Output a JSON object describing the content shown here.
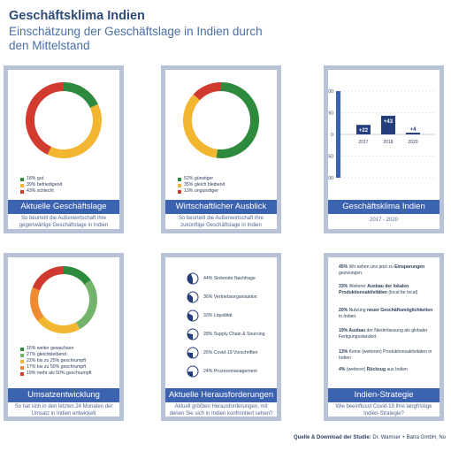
{
  "header": {
    "title": "Geschäftsklima Indien",
    "subtitle": "Einschätzung der Geschäftslage in Indien durch den Mittelstand"
  },
  "cards": {
    "lage": {
      "heading": "Aktuelle Geschäftslage",
      "description": "So beurteilt die Außenwirtschaft ihre gegenwärtige Geschäftslage in Indien",
      "legend": [
        "18% gut",
        "39% befriedigend",
        "43% schlecht"
      ]
    },
    "ausblick": {
      "heading": "Wirtschaftlicher Ausblick",
      "description": "So beurteilt die Außenwirtschaft ihre zukünftige Geschäftslage in Indien",
      "legend": [
        "52% günstiger",
        "35% gleich bleibend",
        "13% ungünstiger"
      ]
    },
    "klima": {
      "heading": "Geschäftsklima Indien",
      "description": "2017 - 2020"
    },
    "umsatz": {
      "heading": "Umsatzentwicklung",
      "description": "So hat sich in den letzten 24 Monaten der Umsatz in Indien entwickelt",
      "legend": [
        "15% weiter gewachsen",
        "27% gleichbleibend",
        "22% bis zu 25% geschrumpft",
        "17% bis zu 50% geschrumpft",
        "19% mehr als 50% geschrumpft"
      ]
    },
    "herausforderungen": {
      "heading": "Aktuelle Herausforderungen",
      "description": "Aktuell größten Herausforderungen, mit denen Sie sich in Indien konfrontiert sehen?",
      "items": [
        {
          "pct": "44%",
          "label": "Sinkende Nachfrage"
        },
        {
          "pct": "36%",
          "label": "Vertriebsorganisation"
        },
        {
          "pct": "33%",
          "label": "Liquidität"
        },
        {
          "pct": "28%",
          "label": "Supply Chain & Sourcing"
        },
        {
          "pct": "26%",
          "label": "Covid-19 Vorschriften"
        },
        {
          "pct": "24%",
          "label": "Prozessmanagement"
        }
      ]
    },
    "strategie": {
      "heading": "Indien-Strategie",
      "description": "Wie beeinflusst Covid-19 Ihre langfristige Indien-Strategie?",
      "items": [
        {
          "pct": "45%",
          "pre": "Wir sehen uns jetzt zu",
          "bold": "Einsparungen",
          "post": "gezwungen."
        },
        {
          "pct": "33%",
          "pre": "Weiterer",
          "bold": "Ausbau der lokalen Produktionsaktivitäten",
          "post": "(local for local)"
        },
        {
          "pct": "20%",
          "pre": "Nutzung",
          "bold": "neuer Geschäftsmöglichkeiten",
          "post": "in Indien."
        },
        {
          "pct": "19%",
          "pre": "",
          "bold": "Ausbau",
          "post": "der Niederlassung als globaler Fertigungsstandort."
        },
        {
          "pct": "13%",
          "pre": "Keine (weiteren) Produktionsaktivitäten in Indien",
          "bold": "",
          "post": ""
        },
        {
          "pct": "4%",
          "pre": "(weiterer)",
          "bold": "Rückzug",
          "post": "aus Indien"
        }
      ]
    }
  },
  "footer": {
    "label": "Quelle & Download der Studie:",
    "text": "Dr. Wamser + Batra GmbH, No"
  },
  "colors": {
    "green": "#2e8b3d",
    "yellow": "#f2b631",
    "red": "#d03a2f",
    "light_green": "#74b36b",
    "orange": "#ee8a2f",
    "navy": "#253d7a",
    "band_blue": "#3c63b0",
    "frame": "#b8c3d8"
  },
  "chart_data": [
    {
      "type": "pie",
      "title": "Aktuelle Geschäftslage",
      "labels": [
        "gut",
        "befriedigend",
        "schlecht"
      ],
      "values": [
        18,
        39,
        43
      ],
      "colors": [
        "#2e8b3d",
        "#f2b631",
        "#d03a2f"
      ]
    },
    {
      "type": "pie",
      "title": "Wirtschaftlicher Ausblick",
      "labels": [
        "günstiger",
        "gleich bleibend",
        "ungünstiger"
      ],
      "values": [
        52,
        35,
        13
      ],
      "colors": [
        "#2e8b3d",
        "#f2b631",
        "#d03a2f"
      ]
    },
    {
      "type": "bar",
      "title": "Geschäftsklima Indien",
      "categories": [
        "2017",
        "2018",
        "2020"
      ],
      "values": [
        22,
        43,
        4
      ],
      "data_labels": [
        "+22",
        "+43",
        "+4"
      ],
      "yticks": [
        100,
        50,
        0,
        -50,
        -100
      ],
      "ylim": [
        -100,
        100
      ]
    },
    {
      "type": "pie",
      "title": "Umsatzentwicklung",
      "labels": [
        "weiter gewachsen",
        "gleichbleibend",
        "bis zu 25% geschrumpft",
        "bis zu 50% geschrumpft",
        "mehr als 50% geschrumpft"
      ],
      "values": [
        15,
        27,
        22,
        17,
        19
      ],
      "colors": [
        "#2e8b3d",
        "#74b36b",
        "#f2b631",
        "#ee8a2f",
        "#d03a2f"
      ]
    },
    {
      "type": "pie",
      "title": "Aktuelle Herausforderungen",
      "labels": [
        "Sinkende Nachfrage",
        "Vertriebsorganisation",
        "Liquidität",
        "Supply Chain & Sourcing",
        "Covid-19 Vorschriften",
        "Prozessmanagement"
      ],
      "values": [
        44,
        36,
        33,
        28,
        26,
        24
      ]
    }
  ]
}
